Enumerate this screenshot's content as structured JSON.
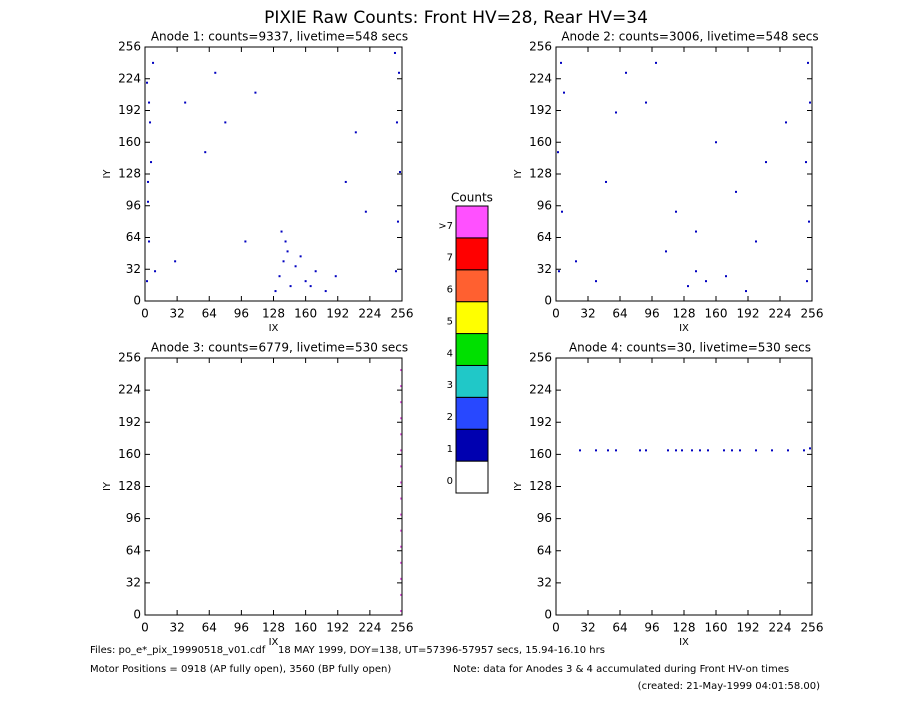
{
  "title": "PIXIE Raw Counts:  Front HV=28, Rear HV=34",
  "footer": {
    "files": "Files: po_e*_pix_19990518_v01.cdf    18 MAY 1999, DOY=138, UT=57396-57957 secs, 15.94-16.10 hrs",
    "motor": "Motor Positions = 0918 (AP fully open), 3560 (BP fully open)",
    "note": "Note: data for Anodes 3 & 4 accumulated during Front HV-on times",
    "created": "(created: 21-May-1999 04:01:58.00)"
  },
  "chart_data": [
    {
      "type": "scatter",
      "title": "Anode 1: counts=9337, livetime=548 secs",
      "xlabel": "IX",
      "ylabel": "IY",
      "color": "#0000c0",
      "xlim": [
        0,
        256
      ],
      "ylim": [
        0,
        256
      ],
      "xticks": [
        0,
        32,
        64,
        96,
        128,
        160,
        192,
        224,
        256
      ],
      "yticks": [
        0,
        32,
        64,
        96,
        128,
        160,
        192,
        224,
        256
      ],
      "x": [
        2,
        4,
        3,
        6,
        5,
        2,
        8,
        10,
        4,
        3,
        250,
        252,
        254,
        251,
        253,
        249,
        130,
        134,
        138,
        140,
        145,
        150,
        160,
        170,
        180,
        190,
        136,
        142,
        155,
        165,
        40,
        60,
        80,
        100,
        200,
        220,
        30,
        70,
        110,
        210
      ],
      "y": [
        20,
        60,
        100,
        140,
        180,
        220,
        240,
        30,
        200,
        120,
        30,
        80,
        130,
        180,
        230,
        250,
        10,
        25,
        40,
        60,
        15,
        35,
        20,
        30,
        10,
        25,
        70,
        50,
        45,
        15,
        200,
        150,
        180,
        60,
        120,
        90,
        40,
        230,
        210,
        170
      ]
    },
    {
      "type": "scatter",
      "title": "Anode 2: counts=3006, livetime=548 secs",
      "xlabel": "IX",
      "ylabel": "IY",
      "color": "#0000c0",
      "xlim": [
        0,
        256
      ],
      "ylim": [
        0,
        256
      ],
      "xticks": [
        0,
        32,
        64,
        96,
        128,
        160,
        192,
        224,
        256
      ],
      "yticks": [
        0,
        32,
        64,
        96,
        128,
        160,
        192,
        224,
        256
      ],
      "x": [
        3,
        6,
        2,
        8,
        5,
        251,
        253,
        250,
        254,
        252,
        132,
        140,
        150,
        170,
        190,
        20,
        50,
        90,
        120,
        160,
        200,
        230,
        70,
        110,
        180,
        40,
        210,
        100,
        140,
        60
      ],
      "y": [
        30,
        90,
        150,
        210,
        240,
        20,
        80,
        140,
        200,
        240,
        15,
        30,
        20,
        25,
        10,
        40,
        120,
        200,
        90,
        160,
        60,
        180,
        230,
        50,
        110,
        20,
        140,
        240,
        70,
        190
      ]
    },
    {
      "type": "scatter",
      "title": "Anode 3: counts=6779, livetime=530 secs",
      "xlabel": "IX",
      "ylabel": "IY",
      "color": "#e060e0",
      "xlim": [
        0,
        256
      ],
      "ylim": [
        0,
        256
      ],
      "xticks": [
        0,
        32,
        64,
        96,
        128,
        160,
        192,
        224,
        256
      ],
      "yticks": [
        0,
        32,
        64,
        96,
        128,
        160,
        192,
        224,
        256
      ],
      "x": [
        255,
        255,
        255,
        255,
        255,
        255,
        255,
        255,
        255,
        255,
        255,
        255,
        255,
        255,
        255,
        255
      ],
      "y": [
        4,
        20,
        36,
        52,
        68,
        84,
        100,
        116,
        132,
        148,
        164,
        180,
        196,
        212,
        228,
        244
      ]
    },
    {
      "type": "scatter",
      "title": "Anode 4: counts=30, livetime=530 secs",
      "xlabel": "IX",
      "ylabel": "IY",
      "color": "#0000c0",
      "xlim": [
        0,
        256
      ],
      "ylim": [
        0,
        256
      ],
      "xticks": [
        0,
        32,
        64,
        96,
        128,
        160,
        192,
        224,
        256
      ],
      "yticks": [
        0,
        32,
        64,
        96,
        128,
        160,
        192,
        224,
        256
      ],
      "x": [
        24,
        40,
        52,
        60,
        84,
        90,
        112,
        120,
        126,
        136,
        144,
        152,
        168,
        176,
        184,
        200,
        216,
        232,
        248,
        254
      ],
      "y": [
        164,
        164,
        164,
        164,
        164,
        164,
        164,
        164,
        164,
        164,
        164,
        164,
        164,
        164,
        164,
        164,
        164,
        164,
        164,
        166
      ]
    },
    {
      "type": "colorbar",
      "title": "Counts",
      "categories": [
        "0",
        "1",
        "2",
        "3",
        "4",
        "5",
        "6",
        "7",
        ">7"
      ],
      "colors": [
        "#ffffff",
        "#0000b0",
        "#2848ff",
        "#20c8c8",
        "#00e000",
        "#ffff00",
        "#ff6030",
        "#ff0000",
        "#ff50ff"
      ]
    }
  ]
}
